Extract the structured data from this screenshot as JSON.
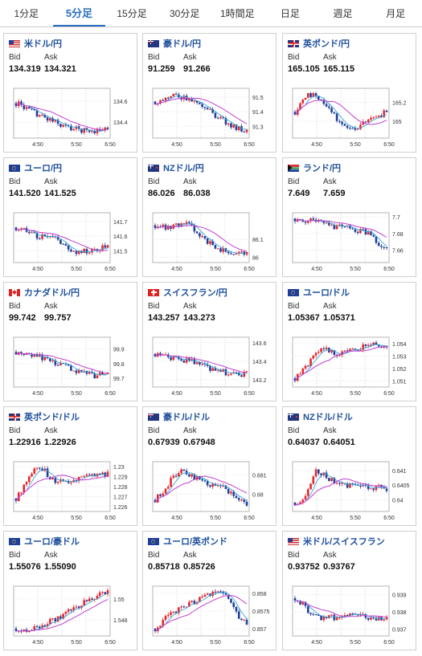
{
  "tabs": [
    {
      "label": "1分足",
      "active": false
    },
    {
      "label": "5分足",
      "active": true
    },
    {
      "label": "15分足",
      "active": false
    },
    {
      "label": "30分足",
      "active": false
    },
    {
      "label": "1時間足",
      "active": false
    },
    {
      "label": "日足",
      "active": false
    },
    {
      "label": "週足",
      "active": false
    },
    {
      "label": "月足",
      "active": false
    }
  ],
  "bid_label": "Bid",
  "ask_label": "Ask",
  "colors": {
    "up": "#e8252a",
    "down": "#1f3f9a",
    "ma_short": "#3aa6d8",
    "ma_long": "#c040d0",
    "pair_name": "#1d4f9c",
    "tab_active": "#2a6fbf"
  },
  "cards": [
    {
      "pair": "米ドル/円",
      "flag": "us",
      "bid": "134.319",
      "ask": "134.321",
      "chart_data": {
        "type": "candlestick",
        "x_ticks": [
          "4:50",
          "5:50",
          "6:50"
        ],
        "y_ticks": [
          "134.6",
          "134.4"
        ],
        "ylim": [
          134.25,
          134.72
        ],
        "trend": [
          134.58,
          134.55,
          134.5,
          134.48,
          134.44,
          134.42,
          134.38,
          134.36,
          134.34,
          134.33,
          134.32,
          134.32,
          134.33,
          134.34
        ]
      }
    },
    {
      "pair": "豪ドル/円",
      "flag": "au",
      "bid": "91.259",
      "ask": "91.266",
      "chart_data": {
        "type": "candlestick",
        "x_ticks": [
          "4:50",
          "5:50",
          "6:50"
        ],
        "y_ticks": [
          "91.5",
          "91.4",
          "91.3"
        ],
        "ylim": [
          91.22,
          91.56
        ],
        "trend": [
          91.47,
          91.48,
          91.5,
          91.51,
          91.49,
          91.48,
          91.44,
          91.42,
          91.4,
          91.36,
          91.33,
          91.3,
          91.28,
          91.26
        ]
      }
    },
    {
      "pair": "英ポンド/円",
      "flag": "gb",
      "bid": "165.105",
      "ask": "165.115",
      "chart_data": {
        "type": "candlestick",
        "x_ticks": [
          "4:50",
          "5:50",
          "6:50"
        ],
        "y_ticks": [
          "165.2",
          "165"
        ],
        "ylim": [
          164.82,
          165.35
        ],
        "trend": [
          165.1,
          165.22,
          165.28,
          165.27,
          165.2,
          165.12,
          165.0,
          164.94,
          164.92,
          164.95,
          164.98,
          165.02,
          165.06,
          165.1
        ]
      }
    },
    {
      "pair": "ユーロ/円",
      "flag": "eu",
      "bid": "141.520",
      "ask": "141.525",
      "chart_data": {
        "type": "candlestick",
        "x_ticks": [
          "4:50",
          "5:50",
          "6:50"
        ],
        "y_ticks": [
          "141.7",
          "141.6",
          "141.5"
        ],
        "ylim": [
          141.42,
          141.76
        ],
        "trend": [
          141.66,
          141.65,
          141.62,
          141.6,
          141.59,
          141.6,
          141.56,
          141.53,
          141.5,
          141.49,
          141.5,
          141.51,
          141.52,
          141.52
        ]
      }
    },
    {
      "pair": "NZドル/円",
      "flag": "nz",
      "bid": "86.026",
      "ask": "86.038",
      "chart_data": {
        "type": "candlestick",
        "x_ticks": [
          "4:50",
          "5:50",
          "6:50"
        ],
        "y_ticks": [
          "86.1",
          "86"
        ],
        "ylim": [
          85.97,
          86.25
        ],
        "trend": [
          86.18,
          86.17,
          86.16,
          86.18,
          86.2,
          86.19,
          86.14,
          86.1,
          86.07,
          86.05,
          86.03,
          86.02,
          86.02,
          86.03
        ]
      }
    },
    {
      "pair": "ランド/円",
      "flag": "za",
      "bid": "7.649",
      "ask": "7.659",
      "chart_data": {
        "type": "candlestick",
        "x_ticks": [
          "4:50",
          "5:50",
          "6:50"
        ],
        "y_ticks": [
          "7.7",
          "7.68",
          "7.66"
        ],
        "ylim": [
          7.645,
          7.705
        ],
        "trend": [
          7.698,
          7.697,
          7.695,
          7.694,
          7.693,
          7.69,
          7.688,
          7.687,
          7.685,
          7.683,
          7.682,
          7.681,
          7.664,
          7.66
        ]
      }
    },
    {
      "pair": "カナダドル/円",
      "flag": "ca",
      "bid": "99.742",
      "ask": "99.757",
      "chart_data": {
        "type": "candlestick",
        "x_ticks": [
          "4:50",
          "5:50",
          "6:50"
        ],
        "y_ticks": [
          "99.9",
          "99.8",
          "99.7"
        ],
        "ylim": [
          99.64,
          99.98
        ],
        "trend": [
          99.88,
          99.87,
          99.84,
          99.86,
          99.83,
          99.82,
          99.8,
          99.79,
          99.75,
          99.74,
          99.73,
          99.72,
          99.72,
          99.74
        ]
      }
    },
    {
      "pair": "スイスフラン/円",
      "flag": "ch",
      "bid": "143.257",
      "ask": "143.273",
      "chart_data": {
        "type": "candlestick",
        "x_ticks": [
          "4:50",
          "5:50",
          "6:50"
        ],
        "y_ticks": [
          "143.6",
          "143.4",
          "143.2"
        ],
        "ylim": [
          143.12,
          143.66
        ],
        "trend": [
          143.48,
          143.47,
          143.44,
          143.42,
          143.4,
          143.42,
          143.38,
          143.35,
          143.32,
          143.3,
          143.28,
          143.26,
          143.24,
          143.26
        ]
      }
    },
    {
      "pair": "ユーロ/ドル",
      "flag": "eu",
      "bid": "1.05367",
      "ask": "1.05371",
      "chart_data": {
        "type": "candlestick",
        "x_ticks": [
          "4:50",
          "5:50",
          "6:50"
        ],
        "y_ticks": [
          "1.054",
          "1.053",
          "1.052",
          "1.051"
        ],
        "ylim": [
          1.0505,
          1.0545
        ],
        "trend": [
          1.0512,
          1.0518,
          1.0525,
          1.0532,
          1.0535,
          1.0534,
          1.0532,
          1.0533,
          1.0535,
          1.0536,
          1.0538,
          1.054,
          1.0539,
          1.0537
        ]
      }
    },
    {
      "pair": "英ポンド/ドル",
      "flag": "gb",
      "bid": "1.22916",
      "ask": "1.22926",
      "chart_data": {
        "type": "candlestick",
        "x_ticks": [
          "4:50",
          "5:50",
          "6:50"
        ],
        "y_ticks": [
          "1.23",
          "1.229",
          "1.228",
          "1.227",
          "1.226"
        ],
        "ylim": [
          1.2255,
          1.2305
        ],
        "trend": [
          1.2268,
          1.2278,
          1.2292,
          1.23,
          1.2296,
          1.2288,
          1.2285,
          1.2284,
          1.2285,
          1.2287,
          1.2289,
          1.229,
          1.2291,
          1.2292
        ]
      }
    },
    {
      "pair": "豪ドル/ドル",
      "flag": "au",
      "bid": "0.67939",
      "ask": "0.67948",
      "chart_data": {
        "type": "candlestick",
        "x_ticks": [
          "4:50",
          "5:50",
          "6:50"
        ],
        "y_ticks": [
          "0.681",
          "0.68"
        ],
        "ylim": [
          0.6791,
          0.6817
        ],
        "trend": [
          0.6797,
          0.6801,
          0.6806,
          0.6811,
          0.6813,
          0.681,
          0.6808,
          0.6806,
          0.6805,
          0.6804,
          0.6803,
          0.68,
          0.6797,
          0.6794
        ]
      }
    },
    {
      "pair": "NZドル/ドル",
      "flag": "nz",
      "bid": "0.64037",
      "ask": "0.64051",
      "chart_data": {
        "type": "candlestick",
        "x_ticks": [
          "4:50",
          "5:50",
          "6:50"
        ],
        "y_ticks": [
          "0.641",
          "0.6405",
          "0.64"
        ],
        "ylim": [
          0.6396,
          0.6413
        ],
        "trend": [
          0.6399,
          0.64,
          0.6404,
          0.641,
          0.6409,
          0.6407,
          0.6406,
          0.6405,
          0.6405,
          0.6405,
          0.6404,
          0.6404,
          0.6404,
          0.6404
        ]
      }
    },
    {
      "pair": "ユーロ/豪ドル",
      "flag": "eu",
      "bid": "1.55076",
      "ask": "1.55090",
      "chart_data": {
        "type": "candlestick",
        "x_ticks": [
          "4:50",
          "5:50",
          "6:50"
        ],
        "y_ticks": [
          "1.55",
          "1.548"
        ],
        "ylim": [
          1.5465,
          1.5512
        ],
        "trend": [
          1.5472,
          1.5471,
          1.5472,
          1.5474,
          1.5476,
          1.5479,
          1.5482,
          1.5486,
          1.549,
          1.5494,
          1.5498,
          1.5502,
          1.5506,
          1.5508
        ]
      }
    },
    {
      "pair": "ユーロ/英ポンド",
      "flag": "eu",
      "bid": "0.85718",
      "ask": "0.85726",
      "chart_data": {
        "type": "candlestick",
        "x_ticks": [
          "4:50",
          "5:50",
          "6:50"
        ],
        "y_ticks": [
          "0.858",
          "0.8575",
          "0.857"
        ],
        "ylim": [
          0.8568,
          0.8582
        ],
        "trend": [
          0.857,
          0.8572,
          0.8574,
          0.8575,
          0.8576,
          0.8577,
          0.8578,
          0.8579,
          0.858,
          0.858,
          0.8579,
          0.8576,
          0.8573,
          0.8572
        ]
      }
    },
    {
      "pair": "米ドル/スイスフラン",
      "flag": "us",
      "bid": "0.93752",
      "ask": "0.93767",
      "chart_data": {
        "type": "candlestick",
        "x_ticks": [
          "4:50",
          "5:50",
          "6:50"
        ],
        "y_ticks": [
          "0.939",
          "0.938",
          "0.937"
        ],
        "ylim": [
          0.9366,
          0.9395
        ],
        "trend": [
          0.9388,
          0.9385,
          0.938,
          0.9377,
          0.9376,
          0.9377,
          0.9376,
          0.9377,
          0.9378,
          0.9378,
          0.9377,
          0.9376,
          0.9376,
          0.9377
        ]
      }
    }
  ]
}
